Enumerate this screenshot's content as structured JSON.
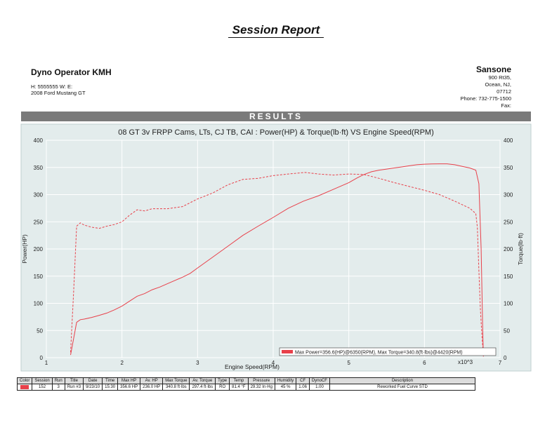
{
  "report": {
    "title": "Session Report",
    "operator": "Dyno Operator KMH",
    "customer_phone": "H:  5555555     W:      E:",
    "vehicle": "2008 Ford   Mustang GT",
    "shop": {
      "name": "Sansone",
      "address1": "900 Rt35,",
      "address2": "Ocean, NJ,",
      "zip": "07712",
      "phone": "Phone: 732-775-1500",
      "fax": "Fax:"
    },
    "section_header": "RESULTS"
  },
  "colors": {
    "plot_bg": "#e3ecec",
    "curve": "#e8404a",
    "grid": "#ffffff",
    "frame": "#bfcfcf"
  },
  "chart_data": {
    "type": "line",
    "title": "08 GT 3v FRPP Cams, LTs, CJ TB, CAI : Power(HP) & Torque(lb·ft) VS Engine Speed(RPM)",
    "xlabel": "Engine Speed(RPM)",
    "ylabel": "Power(HP)",
    "y2label": "Torque(lb·ft)",
    "x_multiplier_label": "x10^3",
    "xlim": [
      1,
      7
    ],
    "ylim": [
      0,
      400
    ],
    "y2lim": [
      0,
      400
    ],
    "xticks": [
      1,
      2,
      3,
      4,
      5,
      6,
      7
    ],
    "yticks": [
      0,
      50,
      100,
      150,
      200,
      250,
      300,
      350,
      400
    ],
    "grid": true,
    "legend_text": "Max Power=356.6(HP)@6350(RPM), Max Torque=340.8(ft·lbs)@4420(RPM)",
    "legend_position": "bottom-right",
    "series": [
      {
        "axis": "left",
        "style": "solid",
        "x": [
          1.32,
          1.36,
          1.4,
          1.45,
          1.5,
          1.6,
          1.7,
          1.8,
          1.9,
          2.0,
          2.1,
          2.2,
          2.3,
          2.4,
          2.5,
          2.6,
          2.7,
          2.8,
          2.9,
          3.0,
          3.2,
          3.4,
          3.6,
          3.8,
          4.0,
          4.2,
          4.4,
          4.6,
          4.8,
          5.0,
          5.1,
          5.2,
          5.3,
          5.4,
          5.5,
          5.6,
          5.7,
          5.8,
          5.9,
          6.0,
          6.1,
          6.2,
          6.3,
          6.4,
          6.5,
          6.6,
          6.68,
          6.72,
          6.75,
          6.77,
          6.78
        ],
        "values": [
          5,
          35,
          65,
          70,
          71,
          74,
          78,
          82,
          88,
          95,
          104,
          113,
          118,
          125,
          130,
          136,
          142,
          148,
          155,
          165,
          185,
          205,
          225,
          242,
          258,
          275,
          288,
          298,
          310,
          322,
          330,
          337,
          342,
          345,
          347,
          349,
          351,
          353,
          355,
          356,
          356.5,
          356.6,
          356.6,
          355,
          352,
          349,
          345,
          320,
          200,
          60,
          2
        ]
      },
      {
        "axis": "right",
        "style": "dashed",
        "x": [
          1.32,
          1.36,
          1.4,
          1.45,
          1.5,
          1.6,
          1.7,
          1.8,
          1.9,
          2.0,
          2.1,
          2.2,
          2.3,
          2.4,
          2.6,
          2.8,
          3.0,
          3.2,
          3.4,
          3.6,
          3.8,
          4.0,
          4.2,
          4.42,
          4.6,
          4.8,
          5.0,
          5.2,
          5.4,
          5.6,
          5.8,
          6.0,
          6.2,
          6.4,
          6.6,
          6.68,
          6.7,
          6.72,
          6.74,
          6.76,
          6.78
        ],
        "values": [
          10,
          120,
          242,
          248,
          244,
          240,
          238,
          242,
          245,
          250,
          262,
          272,
          270,
          274,
          274,
          278,
          292,
          303,
          318,
          328,
          330,
          335,
          338,
          340.8,
          338,
          336,
          338,
          337,
          330,
          322,
          315,
          308,
          300,
          288,
          275,
          265,
          240,
          160,
          90,
          40,
          5
        ]
      }
    ]
  },
  "summary": {
    "headers": [
      "Color",
      "Session",
      "Run",
      "Title",
      "Date",
      "Time",
      "Max HP",
      "Av. HP",
      "Max Torque",
      "Av. Torque",
      "Type",
      "Temp",
      "Pressure",
      "Humidity",
      "CF",
      "DynoCF",
      "Description"
    ],
    "row": [
      "",
      "152",
      "3",
      "Run #3",
      "9/23/10",
      "15:30",
      "356.6 HP",
      "236.0 HP",
      "340.8 ft·lbs",
      "297.4 ft·lbs",
      "RO",
      "81.4 °F",
      "29.32 In·Hg",
      "45 %",
      "1.06",
      "1.00",
      "Reworked Fuel Curve STD"
    ]
  }
}
